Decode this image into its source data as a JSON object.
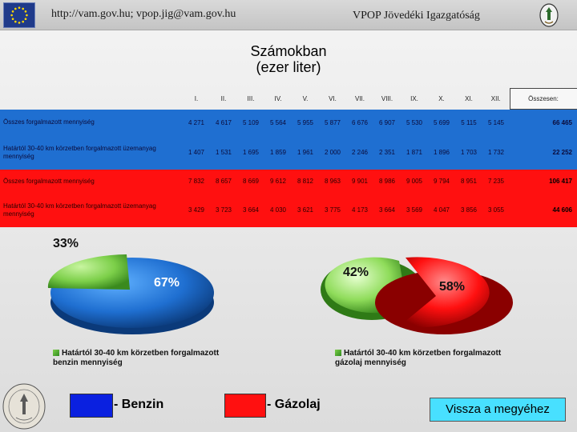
{
  "header": {
    "url_text": "http://vam.gov.hu; vpop.jig@vam.gov.hu",
    "org_text": "VPOP Jövedéki Igazgatóság"
  },
  "title": {
    "line1": "Számokban",
    "line2": "(ezer liter)"
  },
  "table": {
    "columns": [
      "I.",
      "II.",
      "III.",
      "IV.",
      "V.",
      "VI.",
      "VII.",
      "VIII.",
      "IX.",
      "X.",
      "XI.",
      "XII.",
      "Összesen:"
    ],
    "rows": [
      {
        "label": "Összes forgalmazott mennyiség",
        "values": [
          "4 271",
          "4 617",
          "5 109",
          "5 564",
          "5 955",
          "5 877",
          "6 676",
          "6 907",
          "5 530",
          "5 699",
          "5 115",
          "5 145"
        ],
        "total": "66 465"
      },
      {
        "label": "Határtól 30-40 km körzetben forgalmazott üzemanyag mennyiség",
        "values": [
          "1 407",
          "1 531",
          "1 695",
          "1 859",
          "1 961",
          "2 000",
          "2 246",
          "2 351",
          "1 871",
          "1 896",
          "1 703",
          "1 732"
        ],
        "total": "22 252"
      },
      {
        "label": "Összes forgalmazott mennyiség",
        "values": [
          "7 832",
          "8 657",
          "8 669",
          "9 612",
          "8 812",
          "8 963",
          "9 901",
          "8 986",
          "9 005",
          "9 794",
          "8 951",
          "7 235"
        ],
        "total": "106 417"
      },
      {
        "label": "Határtól 30-40 km körzetben forgalmazott üzemanyag mennyiség",
        "values": [
          "3 429",
          "3 723",
          "3 664",
          "4 030",
          "3 621",
          "3 775",
          "4 173",
          "3 664",
          "3 569",
          "4 047",
          "3 856",
          "3 055"
        ],
        "total": "44 606"
      }
    ]
  },
  "charts": {
    "benzin": {
      "small_pct": "33%",
      "large_pct": "67%",
      "small_fraction": 0.33,
      "legend": "Határtól 30-40 km körzetben forgalmazott benzin mennyiség"
    },
    "gazolaj": {
      "small_pct": "42%",
      "large_pct": "58%",
      "small_fraction": 0.42,
      "legend": "Határtól 30-40 km körzetben forgalmazott gázolaj mennyiség"
    }
  },
  "colors": {
    "benzin": "#1f6fd1",
    "gazolaj": "#ff1010",
    "share": "#7ccf49",
    "back_button": "#48e0ff"
  },
  "footer": {
    "benzin_label": "- Benzin",
    "gazolaj_label": "- Gázolaj",
    "back_label": "Vissza a megyéhez"
  }
}
